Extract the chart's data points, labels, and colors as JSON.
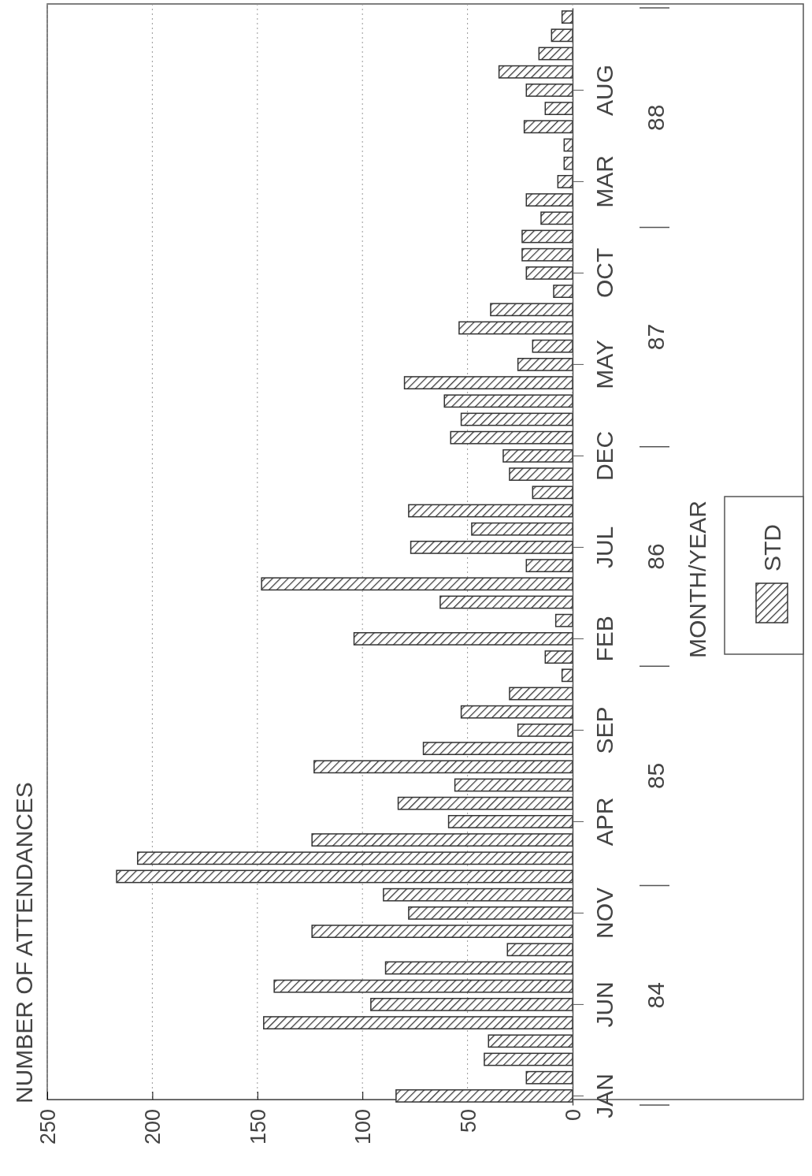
{
  "chart_data": {
    "type": "bar",
    "orientation": "horizontal",
    "title": "NUMBER OF ATTENDANCES",
    "ylabel": "MONTH/YEAR",
    "categories": [
      null,
      null,
      null,
      null,
      "AUG",
      null,
      null,
      null,
      null,
      "MAR",
      null,
      null,
      null,
      null,
      "OCT",
      null,
      null,
      null,
      null,
      "MAY",
      null,
      null,
      null,
      null,
      "DEC",
      null,
      null,
      null,
      null,
      "JUL",
      null,
      null,
      null,
      null,
      "FEB",
      null,
      null,
      null,
      null,
      "SEP",
      null,
      null,
      null,
      null,
      "APR",
      null,
      null,
      null,
      null,
      "NOV",
      null,
      null,
      null,
      null,
      "JUN",
      null,
      null,
      null,
      null,
      "JAN"
    ],
    "series": [
      {
        "name": "STD",
        "color": "#333333",
        "values": [
          5,
          10,
          16,
          35,
          22,
          13,
          23,
          4,
          4,
          7,
          22,
          15,
          24,
          24,
          22,
          9,
          39,
          54,
          19,
          26,
          80,
          61,
          53,
          58,
          33,
          30,
          19,
          78,
          48,
          77,
          22,
          148,
          63,
          8,
          104,
          13,
          5,
          30,
          53,
          26,
          71,
          123,
          56,
          83,
          59,
          124,
          207,
          217,
          90,
          78,
          124,
          31,
          89,
          142,
          96,
          147,
          40,
          42,
          22,
          84
        ]
      }
    ],
    "annotations": [
      "88",
      "87",
      "86",
      "85",
      "84"
    ],
    "xlim": [
      250,
      0
    ],
    "xticks": [
      250,
      200,
      150,
      100,
      50,
      0
    ],
    "grid": "x",
    "legend": "right"
  }
}
